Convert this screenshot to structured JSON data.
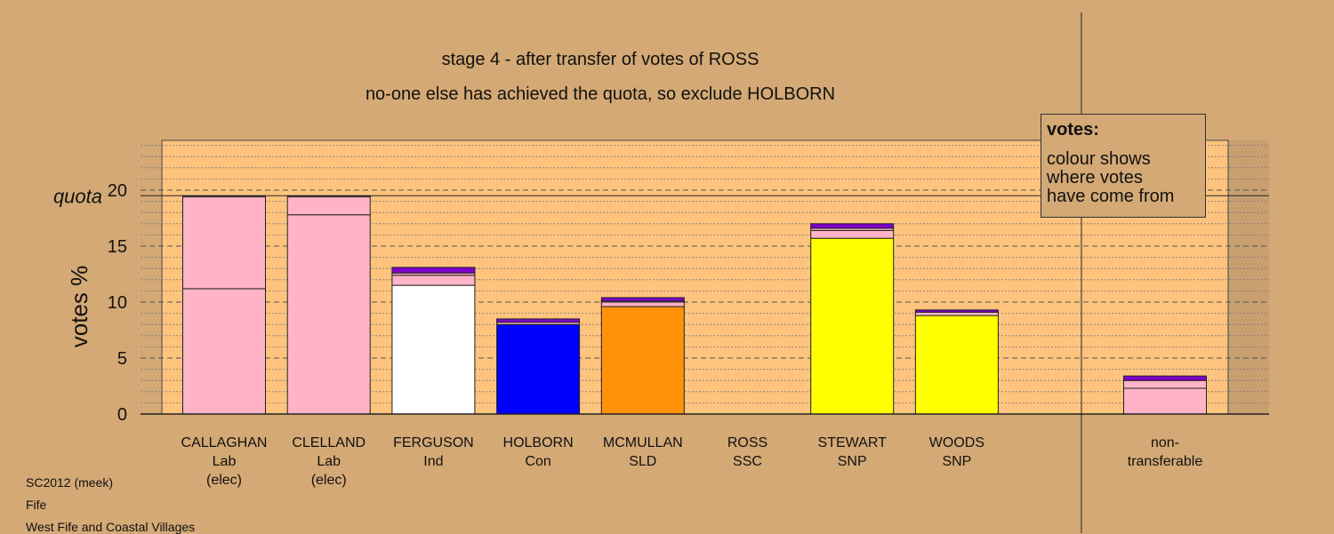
{
  "title": "stage 4 - after transfer of votes of ROSS",
  "subtitle": "no-one else has achieved the quota, so exclude HOLBORN",
  "legend": {
    "title": "votes:",
    "line1": "colour shows",
    "line2": "where votes",
    "line3": "have come from"
  },
  "footer": {
    "line1": "SC2012 (meek)",
    "line2": "Fife",
    "line3": "West Fife and Coastal Villages"
  },
  "colors": {
    "background": "#d4a975",
    "plot_background": "#fec47e",
    "Lab": "#ffb3c6",
    "Ind": "#ffffff",
    "Con": "#0000ff",
    "SLD": "#ff9208",
    "SSC": "#ff0000",
    "SNP": "#ffff00",
    "transfer_purple": "#8000cc"
  },
  "chart_data": {
    "type": "bar",
    "stacked": true,
    "ylabel": "votes %",
    "ylim": [
      0,
      24
    ],
    "yticks": [
      0,
      5,
      10,
      15,
      20
    ],
    "quota": 19.5,
    "quota_label": "quota",
    "grid": "dashed at 5, dotted at 1",
    "legend_position": "top-right",
    "candidates": [
      {
        "name": "CALLAGHAN",
        "party": "Lab",
        "note": "(elec)",
        "segments": [
          {
            "value": 11.2,
            "color": "#ffb3c6"
          },
          {
            "value": 8.2,
            "color": "#ffb3c6"
          },
          {
            "value": 0.1,
            "color": "#ffb3c6"
          }
        ]
      },
      {
        "name": "CLELLAND",
        "party": "Lab",
        "note": "(elec)",
        "segments": [
          {
            "value": 17.8,
            "color": "#ffb3c6"
          },
          {
            "value": 1.6,
            "color": "#ffb3c6"
          },
          {
            "value": 0.1,
            "color": "#ffb3c6"
          }
        ]
      },
      {
        "name": "FERGUSON",
        "party": "Ind",
        "note": "",
        "segments": [
          {
            "value": 11.5,
            "color": "#ffffff"
          },
          {
            "value": 0.9,
            "color": "#ffb3c6"
          },
          {
            "value": 0.2,
            "color": "#ffb3c6"
          },
          {
            "value": 0.5,
            "color": "#8000cc"
          }
        ]
      },
      {
        "name": "HOLBORN",
        "party": "Con",
        "note": "",
        "segments": [
          {
            "value": 8.0,
            "color": "#0000ff"
          },
          {
            "value": 0.2,
            "color": "#ffb3c6"
          },
          {
            "value": 0.3,
            "color": "#8000cc"
          }
        ]
      },
      {
        "name": "MCMULLAN",
        "party": "SLD",
        "note": "",
        "segments": [
          {
            "value": 9.6,
            "color": "#ff9208"
          },
          {
            "value": 0.4,
            "color": "#ffb3c6"
          },
          {
            "value": 0.1,
            "color": "#ffb3c6"
          },
          {
            "value": 0.3,
            "color": "#8000cc"
          }
        ]
      },
      {
        "name": "ROSS",
        "party": "SSC",
        "note": "",
        "segments": []
      },
      {
        "name": "STEWART",
        "party": "SNP",
        "note": "",
        "segments": [
          {
            "value": 15.7,
            "color": "#ffff00"
          },
          {
            "value": 0.7,
            "color": "#ffb3c6"
          },
          {
            "value": 0.2,
            "color": "#ffb3c6"
          },
          {
            "value": 0.4,
            "color": "#8000cc"
          }
        ]
      },
      {
        "name": "WOODS",
        "party": "SNP",
        "note": "",
        "segments": [
          {
            "value": 8.8,
            "color": "#ffff00"
          },
          {
            "value": 0.3,
            "color": "#ffb3c6"
          },
          {
            "value": 0.2,
            "color": "#8000cc"
          }
        ]
      }
    ],
    "nontransferable": {
      "label1": "non-",
      "label2": "transferable",
      "segments": [
        {
          "value": 2.3,
          "color": "#ffb3c6"
        },
        {
          "value": 0.7,
          "color": "#ffb3c6"
        },
        {
          "value": 0.4,
          "color": "#8000cc"
        }
      ]
    }
  }
}
